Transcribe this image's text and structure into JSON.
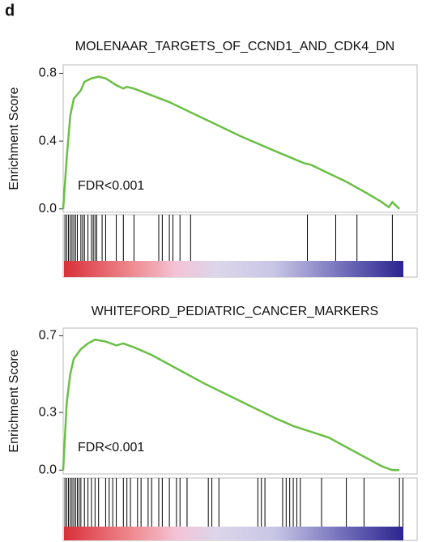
{
  "panel_label": "d",
  "chart_data": [
    {
      "type": "line",
      "title": "MOLENAAR_TARGETS_OF_CCND1_AND_CDK4_DN",
      "y_label": "Enrichment Score",
      "annotation": "FDR<0.001",
      "x": [
        0,
        1,
        2,
        3,
        5,
        6,
        8,
        10,
        12,
        15,
        17,
        18,
        20,
        25,
        30,
        40,
        50,
        60,
        68,
        70,
        72,
        80,
        86,
        90,
        92,
        93,
        95
      ],
      "values": [
        0,
        0.3,
        0.55,
        0.65,
        0.7,
        0.75,
        0.77,
        0.78,
        0.77,
        0.73,
        0.71,
        0.72,
        0.71,
        0.67,
        0.63,
        0.53,
        0.43,
        0.34,
        0.27,
        0.26,
        0.24,
        0.16,
        0.09,
        0.04,
        0.01,
        0.04,
        0.0
      ],
      "color": "#6abf45",
      "xlim": [
        0,
        100
      ],
      "ylim": [
        -0.02,
        0.85
      ],
      "yticks": [
        {
          "value": 0,
          "label": "0.0"
        },
        0.4,
        0.8
      ],
      "hits": [
        0.5,
        1,
        1.5,
        2,
        2.5,
        3,
        3.5,
        4,
        5,
        5.5,
        6,
        7,
        8,
        8.5,
        9,
        9.5,
        11,
        12,
        15,
        17,
        20,
        27,
        28,
        30,
        31,
        33,
        36,
        69,
        77,
        83,
        93
      ]
    },
    {
      "type": "line",
      "title": "WHITEFORD_PEDIATRIC_CANCER_MARKERS",
      "y_label": "Enrichment Score",
      "annotation": "FDR<0.001",
      "x": [
        0,
        1,
        2,
        3,
        5,
        7,
        9,
        12,
        15,
        17,
        20,
        25,
        30,
        40,
        50,
        60,
        65,
        70,
        75,
        80,
        85,
        90,
        93,
        95
      ],
      "values": [
        0,
        0.35,
        0.5,
        0.58,
        0.63,
        0.66,
        0.68,
        0.67,
        0.65,
        0.66,
        0.64,
        0.6,
        0.55,
        0.45,
        0.36,
        0.27,
        0.23,
        0.2,
        0.17,
        0.12,
        0.07,
        0.02,
        0.0,
        0.0
      ],
      "color": "#6abf45",
      "xlim": [
        0,
        100
      ],
      "ylim": [
        -0.02,
        0.74
      ],
      "yticks": [
        {
          "value": 0,
          "label": "0.0"
        },
        0.3,
        0.7
      ],
      "hits": [
        0.5,
        1,
        1.5,
        2,
        2.5,
        3,
        3.5,
        4,
        4.5,
        5,
        6,
        7,
        8,
        9,
        10,
        12,
        13,
        14,
        15,
        17,
        18,
        19,
        21,
        22,
        24,
        25,
        27,
        28,
        30,
        32,
        33,
        35,
        41,
        42,
        44,
        55,
        56,
        57,
        62,
        63,
        64,
        65,
        66,
        67,
        73,
        80,
        85,
        95,
        96
      ]
    }
  ]
}
